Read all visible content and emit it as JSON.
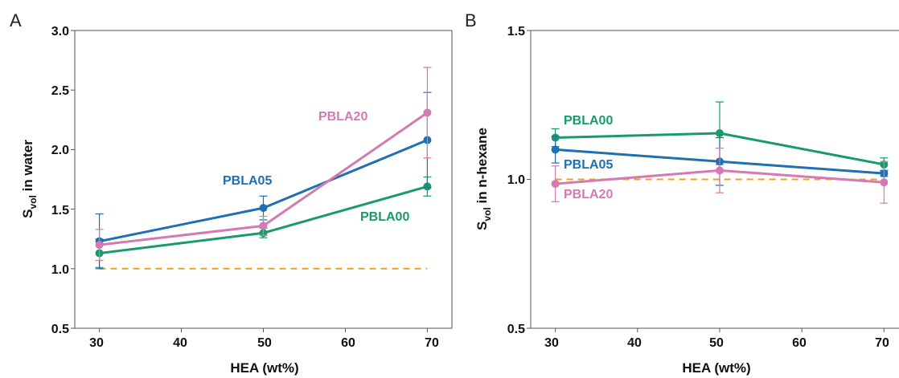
{
  "colors": {
    "PBLA00": "#1a9a6c",
    "PBLA05": "#1f6fb2",
    "PBLA20": "#d479b1",
    "reference": "#f0a020"
  },
  "chart_data": [
    {
      "panel": "A",
      "type": "line",
      "xlabel": "HEA (wt%)",
      "ylabel_main": "S",
      "ylabel_sub": "vol",
      "ylabel_rest": " in water",
      "x": [
        30,
        50,
        70
      ],
      "xlim": [
        27,
        73
      ],
      "ylim": [
        0.5,
        3.0
      ],
      "xticks": [
        "30",
        "40",
        "50",
        "60",
        "70"
      ],
      "yticks": [
        "0.5",
        "1.0",
        "1.5",
        "2.0",
        "2.5",
        "3.0"
      ],
      "reference_line": 1.0,
      "series": [
        {
          "name": "PBLA00",
          "values": [
            1.13,
            1.3,
            1.69
          ],
          "err": [
            0.12,
            0.04,
            0.08
          ]
        },
        {
          "name": "PBLA05",
          "values": [
            1.23,
            1.51,
            2.08
          ],
          "err": [
            0.23,
            0.1,
            0.4
          ]
        },
        {
          "name": "PBLA20",
          "values": [
            1.2,
            1.36,
            2.31
          ],
          "err": [
            0.13,
            0.08,
            0.38
          ]
        }
      ]
    },
    {
      "panel": "B",
      "type": "line",
      "xlabel": "HEA (wt%)",
      "ylabel_main": "S",
      "ylabel_sub": "vol",
      "ylabel_rest": " in n-hexane",
      "x": [
        30,
        50,
        70
      ],
      "xlim": [
        27,
        73
      ],
      "ylim": [
        0.5,
        1.5
      ],
      "xticks": [
        "30",
        "40",
        "50",
        "60",
        "70"
      ],
      "yticks": [
        "0.5",
        "1.0",
        "1.5"
      ],
      "reference_line": 1.0,
      "series": [
        {
          "name": "PBLA00",
          "values": [
            1.14,
            1.155,
            1.05
          ],
          "err": [
            0.03,
            0.105,
            0.022
          ]
        },
        {
          "name": "PBLA05",
          "values": [
            1.1,
            1.06,
            1.02
          ],
          "err": [
            0.045,
            0.08,
            0.01
          ]
        },
        {
          "name": "PBLA20",
          "values": [
            0.985,
            1.03,
            0.99
          ],
          "err": [
            0.06,
            0.075,
            0.07
          ]
        }
      ]
    }
  ]
}
